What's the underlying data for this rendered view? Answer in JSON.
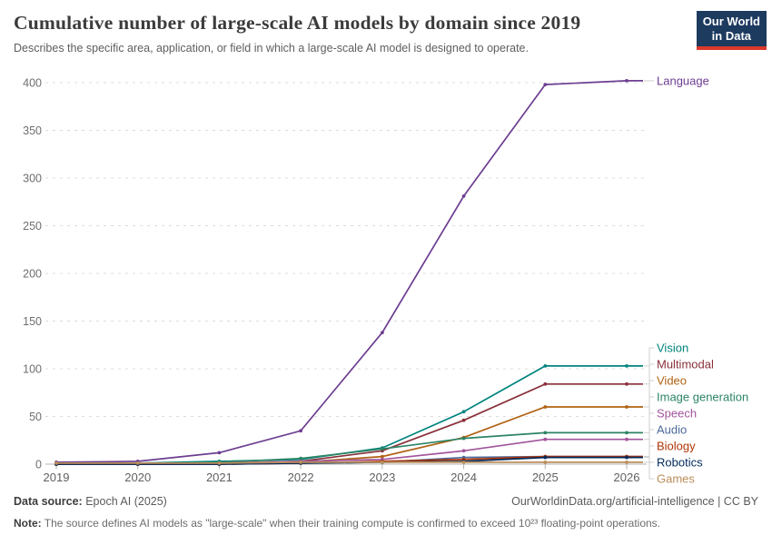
{
  "header": {
    "title": "Cumulative number of large-scale AI models by domain since 2019",
    "subtitle": "Describes the specific area, application, or field in which a large-scale AI model is designed to operate.",
    "logo": {
      "line1": "Our World",
      "line2": "in Data",
      "bg_color": "#1d3a5f",
      "stripe_color": "#dc382a"
    }
  },
  "chart_data": {
    "type": "line",
    "title": "Cumulative number of large-scale AI models by domain since 2019",
    "xlabel": "",
    "ylabel": "",
    "x": [
      2019,
      2020,
      2021,
      2022,
      2023,
      2024,
      2025,
      2026
    ],
    "yticks": [
      0,
      50,
      100,
      150,
      200,
      250,
      300,
      350,
      400
    ],
    "ylim": [
      0,
      400
    ],
    "grid": true,
    "legend_position": "right-of-lines",
    "series": [
      {
        "name": "Language",
        "color": "#6D3E91",
        "values": [
          2,
          3,
          12,
          35,
          138,
          281,
          398,
          402
        ]
      },
      {
        "name": "Vision",
        "color": "#00847E",
        "values": [
          0,
          1,
          3,
          5,
          17,
          55,
          103,
          103
        ]
      },
      {
        "name": "Multimodal",
        "color": "#883039",
        "values": [
          0,
          0,
          1,
          3,
          14,
          46,
          84,
          84
        ]
      },
      {
        "name": "Video",
        "color": "#B16214",
        "values": [
          0,
          0,
          1,
          2,
          8,
          28,
          60,
          60
        ]
      },
      {
        "name": "Image generation",
        "color": "#2C8465",
        "values": [
          0,
          0,
          2,
          6,
          16,
          27,
          33,
          33
        ]
      },
      {
        "name": "Speech",
        "color": "#A2559C",
        "values": [
          0,
          0,
          1,
          3,
          5,
          14,
          26,
          26
        ]
      },
      {
        "name": "Audio",
        "color": "#4C6A9C",
        "values": [
          0,
          0,
          0,
          1,
          2,
          7,
          8,
          8
        ]
      },
      {
        "name": "Biology",
        "color": "#B13507",
        "values": [
          0,
          0,
          0,
          1,
          3,
          5,
          8,
          8
        ]
      },
      {
        "name": "Robotics",
        "color": "#00295B",
        "values": [
          0,
          0,
          0,
          1,
          2,
          3,
          7,
          7
        ]
      },
      {
        "name": "Games",
        "color": "#BC8E5A",
        "values": [
          1,
          1,
          1,
          2,
          2,
          2,
          2,
          2
        ]
      }
    ]
  },
  "footer": {
    "source_label": "Data source:",
    "source_value": " Epoch AI (2025)",
    "link": "OurWorldinData.org/artificial-intelligence | CC BY",
    "note_label": "Note:",
    "note_value": " The source defines AI models as \"large-scale\" when their training compute is confirmed to exceed 10²³ floating-point operations."
  }
}
